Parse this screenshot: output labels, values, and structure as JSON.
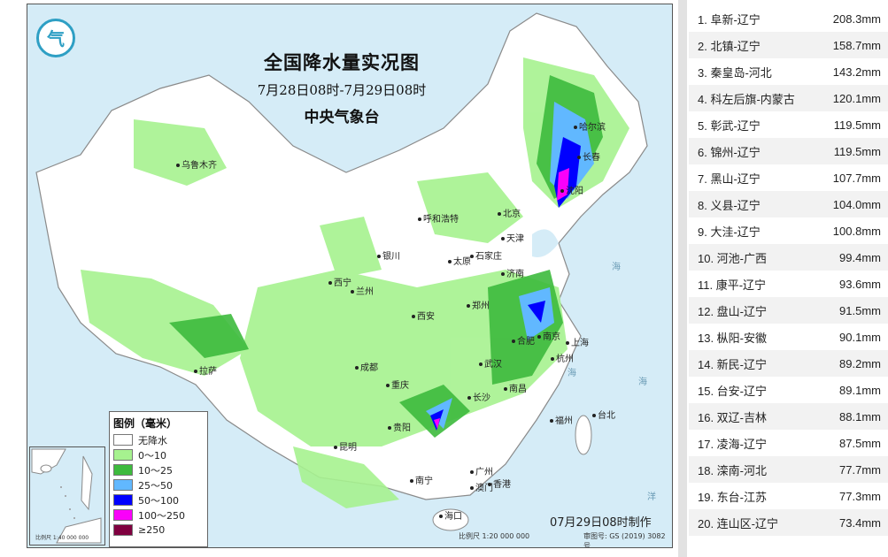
{
  "map": {
    "title": "全国降水量实况图",
    "period": "7月28日08时-7月29日08时",
    "agency": "中央气象台",
    "logo_text": "气",
    "made_time": "07月29日08时制作",
    "scale": "比例尺 1:20 000 000",
    "review_no": "审图号: GS (2019) 3082号",
    "inset_scale": "比例尺 1:40 000 000",
    "cities": [
      {
        "name": "乌鲁木齐"
      },
      {
        "name": "哈尔滨"
      },
      {
        "name": "长春"
      },
      {
        "name": "沈阳"
      },
      {
        "name": "呼和浩特"
      },
      {
        "name": "北京"
      },
      {
        "name": "天津"
      },
      {
        "name": "银川"
      },
      {
        "name": "太原"
      },
      {
        "name": "石家庄"
      },
      {
        "name": "济南"
      },
      {
        "name": "西宁"
      },
      {
        "name": "兰州"
      },
      {
        "name": "郑州"
      },
      {
        "name": "西安"
      },
      {
        "name": "合肥"
      },
      {
        "name": "南京"
      },
      {
        "name": "上海"
      },
      {
        "name": "拉萨"
      },
      {
        "name": "成都"
      },
      {
        "name": "武汉"
      },
      {
        "name": "杭州"
      },
      {
        "name": "重庆"
      },
      {
        "name": "长沙"
      },
      {
        "name": "南昌"
      },
      {
        "name": "贵阳"
      },
      {
        "name": "福州"
      },
      {
        "name": "台北"
      },
      {
        "name": "昆明"
      },
      {
        "name": "南宁"
      },
      {
        "name": "广州"
      },
      {
        "name": "香港"
      },
      {
        "name": "澳门"
      },
      {
        "name": "海口"
      }
    ],
    "legend": {
      "title": "图例（毫米）",
      "items": [
        {
          "label": "无降水",
          "color": "#ffffff"
        },
        {
          "label": "0～10",
          "color": "#a6f28f"
        },
        {
          "label": "10～25",
          "color": "#3dba3d"
        },
        {
          "label": "25～50",
          "color": "#61b8ff"
        },
        {
          "label": "50～100",
          "color": "#0000ff"
        },
        {
          "label": "100～250",
          "color": "#fa00fa"
        },
        {
          "label": "≥250",
          "color": "#800040"
        }
      ]
    }
  },
  "ranking": [
    {
      "name": "1. 阜新-辽宁",
      "value": "208.3mm"
    },
    {
      "name": "2. 北镇-辽宁",
      "value": "158.7mm"
    },
    {
      "name": "3. 秦皇岛-河北",
      "value": "143.2mm"
    },
    {
      "name": "4. 科左后旗-内蒙古",
      "value": "120.1mm"
    },
    {
      "name": "5. 彰武-辽宁",
      "value": "119.5mm"
    },
    {
      "name": "6. 锦州-辽宁",
      "value": "119.5mm"
    },
    {
      "name": "7. 黑山-辽宁",
      "value": "107.7mm"
    },
    {
      "name": "8. 义县-辽宁",
      "value": "104.0mm"
    },
    {
      "name": "9. 大洼-辽宁",
      "value": "100.8mm"
    },
    {
      "name": "10. 河池-广西",
      "value": "99.4mm"
    },
    {
      "name": "11. 康平-辽宁",
      "value": "93.6mm"
    },
    {
      "name": "12. 盘山-辽宁",
      "value": "91.5mm"
    },
    {
      "name": "13. 枞阳-安徽",
      "value": "90.1mm"
    },
    {
      "name": "14. 新民-辽宁",
      "value": "89.2mm"
    },
    {
      "name": "15. 台安-辽宁",
      "value": "89.1mm"
    },
    {
      "name": "16. 双辽-吉林",
      "value": "88.1mm"
    },
    {
      "name": "17. 凌海-辽宁",
      "value": "87.5mm"
    },
    {
      "name": "18. 滦南-河北",
      "value": "77.7mm"
    },
    {
      "name": "19. 东台-江苏",
      "value": "77.3mm"
    },
    {
      "name": "20. 连山区-辽宁",
      "value": "73.4mm"
    }
  ]
}
